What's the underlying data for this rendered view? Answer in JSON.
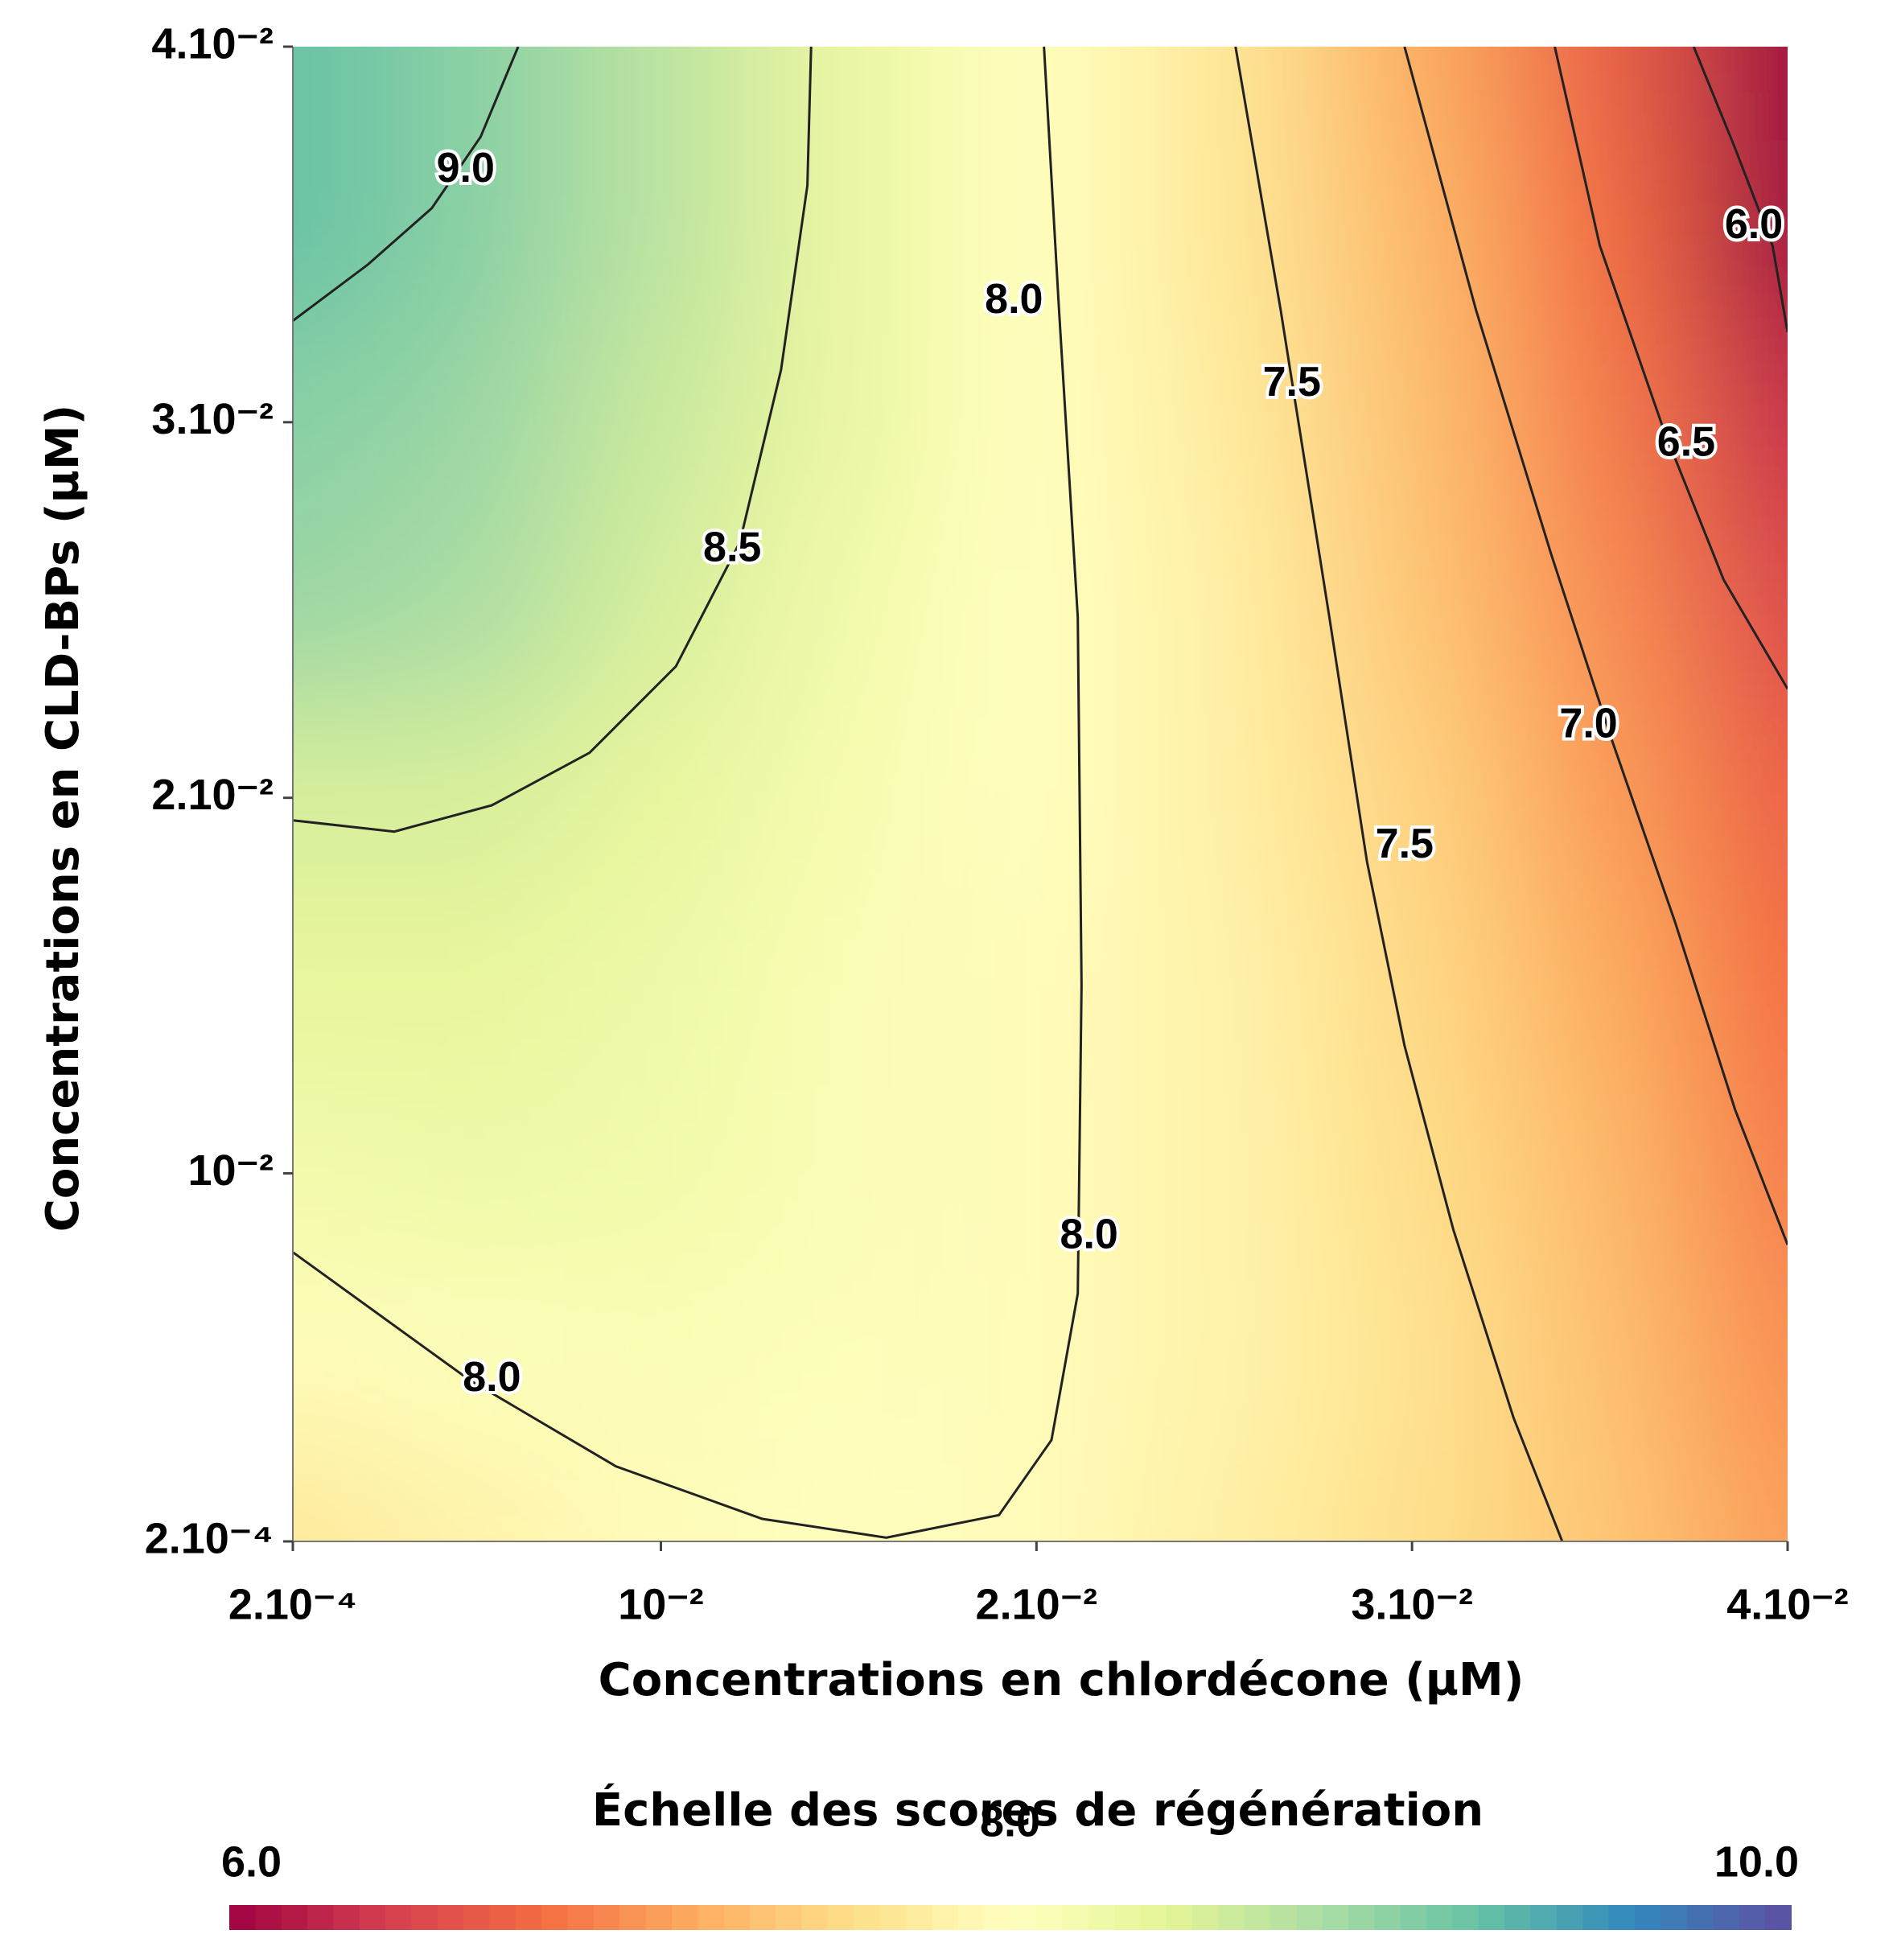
{
  "chart_data": {
    "type": "contour",
    "xlabel": "Concentrations en chlordécone (µM)",
    "ylabel": "Concentrations en CLD-BPs (µM)",
    "xlim": [
      0.0002,
      0.04
    ],
    "ylim": [
      0.0002,
      0.04
    ],
    "xticks": [
      {
        "value": 0.0002,
        "label": "2.10⁻⁴"
      },
      {
        "value": 0.01,
        "label": "10⁻²"
      },
      {
        "value": 0.02,
        "label": "2.10⁻²"
      },
      {
        "value": 0.03,
        "label": "3.10⁻²"
      },
      {
        "value": 0.04,
        "label": "4.10⁻²"
      }
    ],
    "yticks": [
      {
        "value": 0.0002,
        "label": "2.10⁻⁴"
      },
      {
        "value": 0.01,
        "label": "10⁻²"
      },
      {
        "value": 0.02,
        "label": "2.10⁻²"
      },
      {
        "value": 0.03,
        "label": "3.10⁻²"
      },
      {
        "value": 0.04,
        "label": "4.10⁻²"
      }
    ],
    "grid_x": [
      0.0002,
      0.005,
      0.01,
      0.015,
      0.02,
      0.025,
      0.03,
      0.035,
      0.04
    ],
    "grid_y": [
      0.04,
      0.035,
      0.03,
      0.025,
      0.02,
      0.015,
      0.01,
      0.005,
      0.0002
    ],
    "z": [
      [
        9.2,
        9.0,
        8.7,
        8.3,
        8.0,
        7.7,
        7.2,
        6.7,
        5.9
      ],
      [
        9.2,
        9.0,
        8.7,
        8.3,
        8.0,
        7.7,
        7.3,
        6.8,
        6.0
      ],
      [
        9.0,
        8.9,
        8.6,
        8.3,
        8.0,
        7.75,
        7.35,
        6.9,
        6.3
      ],
      [
        8.9,
        8.8,
        8.5,
        8.2,
        8.0,
        7.8,
        7.4,
        7.0,
        6.5
      ],
      [
        8.5,
        8.5,
        8.35,
        8.15,
        8.0,
        7.8,
        7.5,
        7.1,
        6.7
      ],
      [
        8.35,
        8.35,
        8.25,
        8.1,
        7.95,
        7.85,
        7.55,
        7.2,
        6.8
      ],
      [
        8.2,
        8.25,
        8.2,
        8.1,
        7.95,
        7.85,
        7.6,
        7.3,
        6.9
      ],
      [
        7.95,
        8.05,
        8.1,
        8.05,
        7.95,
        7.85,
        7.65,
        7.35,
        7.0
      ],
      [
        7.7,
        7.85,
        7.95,
        8.0,
        7.95,
        7.8,
        7.6,
        7.4,
        7.1
      ]
    ],
    "zlim": [
      6,
      10
    ],
    "colormap": [
      "#9e0142",
      "#d53e4f",
      "#f46d43",
      "#fdae61",
      "#fee08b",
      "#ffffbf",
      "#e6f598",
      "#abdda4",
      "#66c2a5",
      "#3288bd",
      "#5e4fa2"
    ],
    "contours": [
      {
        "x": [
          0.0002,
          0.0022,
          0.0039,
          0.0052,
          0.0062
        ],
        "y": [
          0.0327,
          0.0342,
          0.0357,
          0.0376,
          0.04
        ]
      },
      {
        "x": [
          0.0002,
          0.0029,
          0.0055,
          0.0081,
          0.0104,
          0.0121,
          0.0132,
          0.0139,
          0.014
        ],
        "y": [
          0.0194,
          0.0191,
          0.0198,
          0.0212,
          0.0235,
          0.0268,
          0.0314,
          0.0363,
          0.04
        ]
      },
      {
        "x": [
          0.0202,
          0.0206,
          0.0211,
          0.0212,
          0.0211,
          0.0204,
          0.019,
          0.016,
          0.0127,
          0.0088,
          0.0049,
          0.0002
        ],
        "y": [
          0.04,
          0.033,
          0.0248,
          0.015,
          0.0068,
          0.0029,
          0.0009,
          0.0003,
          0.0008,
          0.0022,
          0.0045,
          0.0079
        ]
      },
      {
        "x": [
          0.0253,
          0.0265,
          0.0278,
          0.0288,
          0.0298,
          0.0311,
          0.0327,
          0.034
        ],
        "y": [
          0.04,
          0.033,
          0.0248,
          0.0183,
          0.0134,
          0.0085,
          0.0035,
          0.0002
        ]
      },
      {
        "x": [
          0.0298,
          0.0317,
          0.0337,
          0.0353,
          0.037,
          0.0386,
          0.04
        ],
        "y": [
          0.04,
          0.033,
          0.0265,
          0.0216,
          0.0167,
          0.0117,
          0.0081
        ]
      },
      {
        "x": [
          0.0338,
          0.035,
          0.0367,
          0.0383,
          0.04
        ],
        "y": [
          0.04,
          0.0347,
          0.0298,
          0.0258,
          0.0229
        ]
      },
      {
        "x": [
          0.0375,
          0.0386,
          0.0396,
          0.04
        ],
        "y": [
          0.04,
          0.0373,
          0.0347,
          0.0324
        ]
      }
    ],
    "contour_labels": {
      "values": [
        9,
        8.5,
        8,
        8,
        8,
        7.5,
        7.5,
        7,
        6.5,
        6
      ],
      "value_labels": [
        "9.0",
        "8.5",
        "8.0",
        "8.0",
        "8.0",
        "7.5",
        "7.5",
        "7.0",
        "6.5",
        "6.0"
      ],
      "x": [
        0.0048,
        0.0119,
        0.0194,
        0.0214,
        0.0055,
        0.0268,
        0.0298,
        0.0347,
        0.0373,
        0.0391
      ],
      "y": [
        0.0367,
        0.0266,
        0.0332,
        0.0083,
        0.0045,
        0.031,
        0.0187,
        0.0219,
        0.0294,
        0.0352
      ]
    },
    "colorbar_title": "Échelle des scores de régénération",
    "colorbar_ticks": [
      {
        "value": 6,
        "label": "6.0"
      },
      {
        "value": 8,
        "label": "8.0"
      },
      {
        "value": 10,
        "label": "10.0"
      }
    ]
  }
}
